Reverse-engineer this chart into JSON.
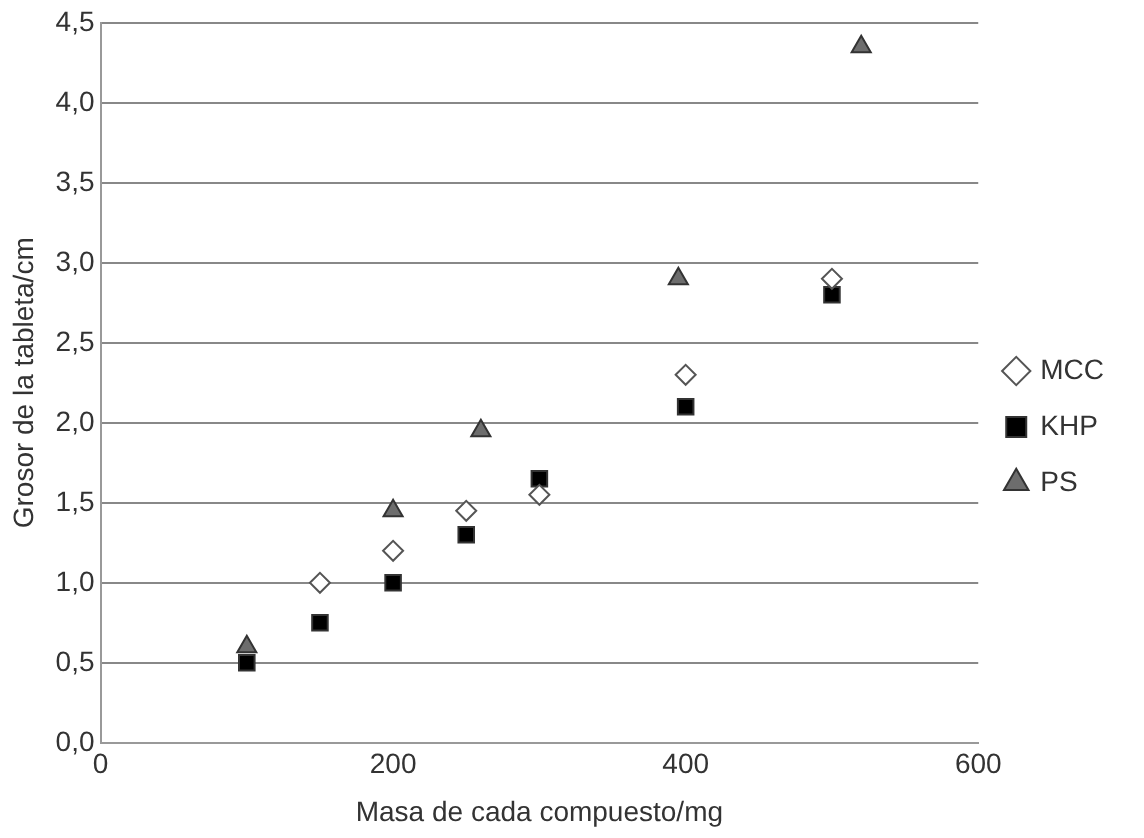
{
  "chart_data": {
    "type": "scatter",
    "xlabel": "Masa de cada compuesto/mg",
    "ylabel": "Grosor de la tableta/cm",
    "xlim": [
      0,
      600
    ],
    "xticks": [
      0,
      200,
      400,
      600
    ],
    "ylim": [
      0,
      4.5
    ],
    "yticks": [
      {
        "value": 0,
        "label": "0,0"
      },
      {
        "value": 0.5,
        "label": "0,5"
      },
      {
        "value": 1,
        "label": "1,0"
      },
      {
        "value": 1.5,
        "label": "1,5"
      },
      {
        "value": 2,
        "label": "2,0"
      },
      {
        "value": 2.5,
        "label": "2,5"
      },
      {
        "value": 3,
        "label": "3,0"
      },
      {
        "value": 3.5,
        "label": "3,5"
      },
      {
        "value": 4,
        "label": "4,0"
      },
      {
        "value": 4.5,
        "label": "4,5"
      }
    ],
    "grid": "y",
    "legend": "right",
    "series": [
      {
        "name": "MCC",
        "color": "#ffffff",
        "marker": "diamond",
        "x": [
          150,
          200,
          250,
          300,
          400,
          500
        ],
        "values": [
          1.0,
          1.2,
          1.45,
          1.55,
          2.3,
          2.9
        ]
      },
      {
        "name": "KHP",
        "color": "#000000",
        "marker": "square",
        "x": [
          100,
          150,
          200,
          250,
          300,
          400,
          500
        ],
        "values": [
          0.5,
          0.75,
          1.0,
          1.3,
          1.65,
          2.1,
          2.8
        ]
      },
      {
        "name": "PS",
        "color": "#6d6d6d",
        "marker": "triangle",
        "x": [
          100,
          200,
          260,
          395,
          520
        ],
        "values": [
          0.6,
          1.45,
          1.95,
          2.9,
          4.35
        ]
      }
    ]
  }
}
